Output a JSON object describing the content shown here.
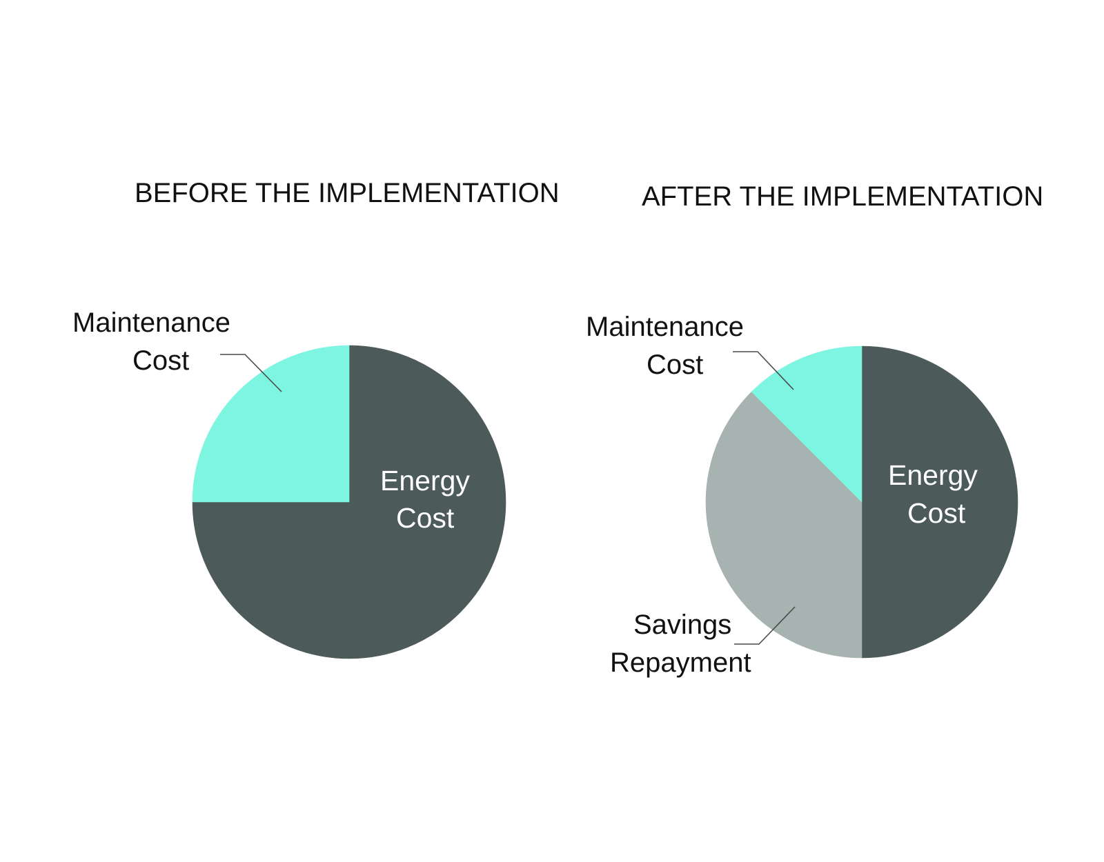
{
  "chart_data": [
    {
      "type": "pie",
      "title": "BEFORE  THE IMPLEMENTATION",
      "slices": [
        {
          "label_lines": [
            "Energy",
            "Cost"
          ],
          "value": 75,
          "color": "#4d5a5a"
        },
        {
          "label_lines": [
            "Maintenance",
            "Cost"
          ],
          "value": 25,
          "color": "#7ef5e0"
        }
      ]
    },
    {
      "type": "pie",
      "title": "AFTER  THE IMPLEMENTATION",
      "slices": [
        {
          "label_lines": [
            "Energy",
            "Cost"
          ],
          "value": 50,
          "color": "#4d5a5a"
        },
        {
          "label_lines": [
            "Savings",
            "Repayment"
          ],
          "value": 37.5,
          "color": "#a7b3b1"
        },
        {
          "label_lines": [
            "Maintenance",
            "Cost"
          ],
          "value": 12.5,
          "color": "#7ef5e0"
        }
      ]
    }
  ],
  "colors": {
    "energy": "#4d5a5a",
    "maintenance": "#7ef5e0",
    "savings": "#a7b3b1",
    "background": "#ffffff"
  }
}
